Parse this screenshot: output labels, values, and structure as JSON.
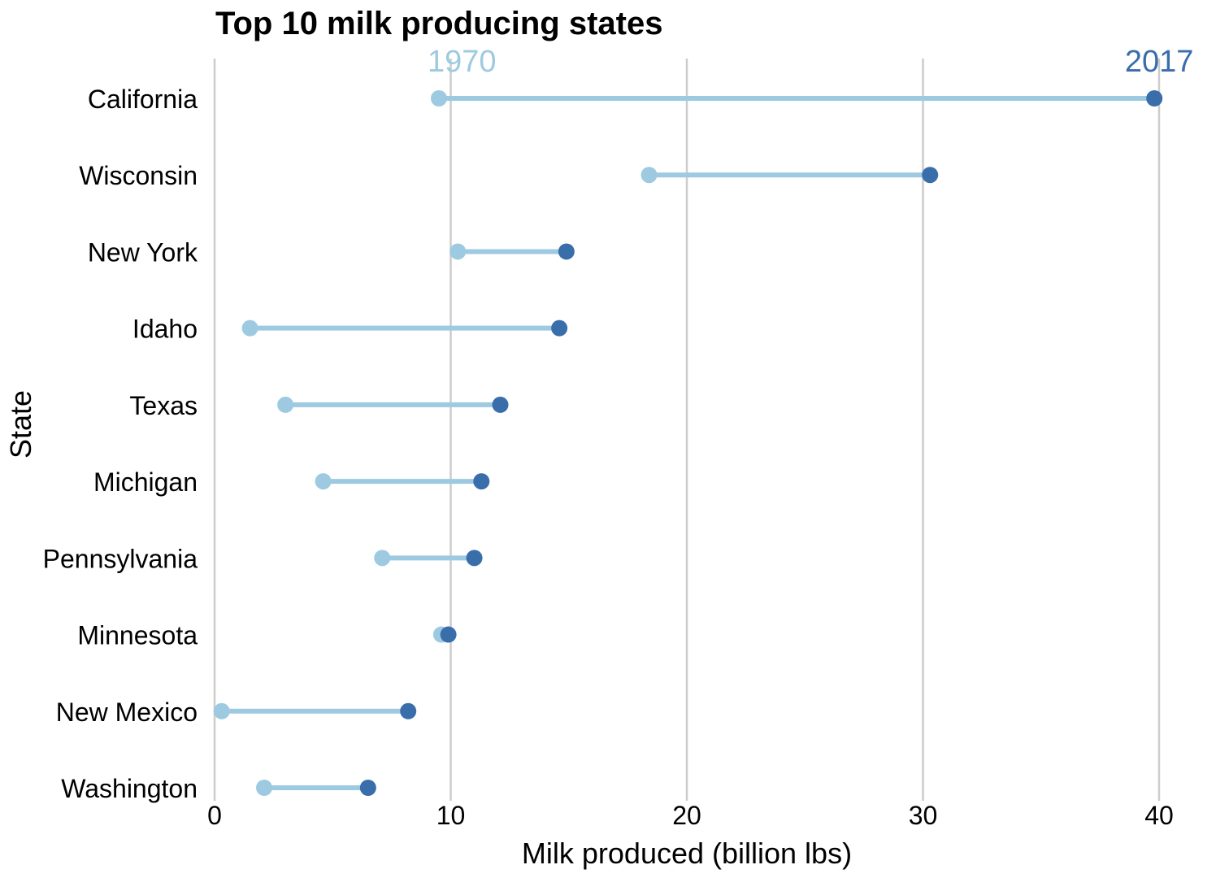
{
  "chart_data": {
    "type": "dumbbell",
    "title": "Top 10 milk producing states",
    "xlabel": "Milk produced (billion lbs)",
    "ylabel": "State",
    "xlim": [
      0,
      40
    ],
    "xticks": [
      0,
      10,
      20,
      30,
      40
    ],
    "grid": "vertical",
    "series": [
      {
        "name": "1970",
        "color": "#9ecae1",
        "values": [
          9.5,
          18.4,
          10.3,
          1.5,
          3.0,
          4.6,
          7.1,
          9.6,
          0.3,
          2.1
        ]
      },
      {
        "name": "2017",
        "color": "#3a6eaa",
        "values": [
          39.8,
          30.3,
          14.9,
          14.6,
          12.1,
          11.3,
          11.0,
          9.9,
          8.2,
          6.5
        ]
      }
    ],
    "categories": [
      "California",
      "Wisconsin",
      "New York",
      "Idaho",
      "Texas",
      "Michigan",
      "Pennsylvania",
      "Minnesota",
      "New Mexico",
      "Washington"
    ],
    "connector_color": "#9ecae1"
  }
}
